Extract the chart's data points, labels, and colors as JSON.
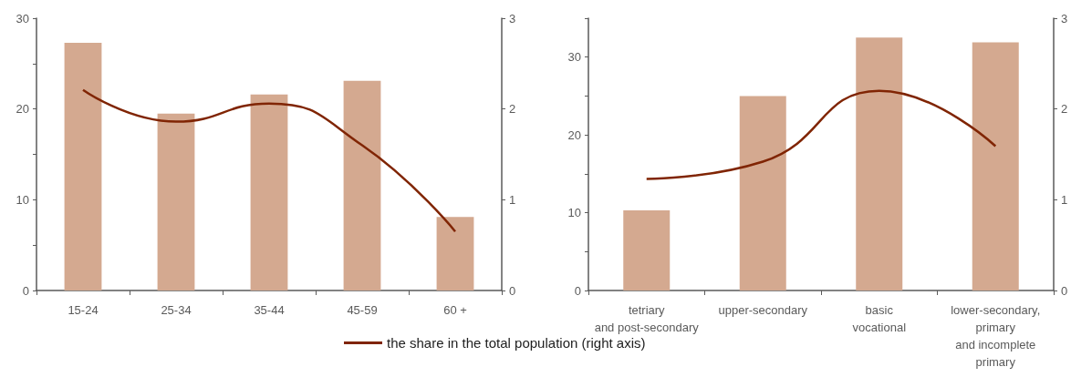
{
  "chart_data": [
    {
      "type": "bar",
      "categories": [
        "15-24",
        "25-34",
        "35-44",
        "45-59",
        "60 +"
      ],
      "series": [
        {
          "color": "#d4a990",
          "values": [
            27.3,
            19.5,
            21.6,
            23.1,
            8.1
          ]
        },
        {
          "type": "line",
          "axis": "y2",
          "name": "the share in the total population (right axis)",
          "color": "#802504",
          "values": [
            2.21,
            1.86,
            2.06,
            1.6,
            0.65
          ]
        }
      ],
      "ylim": [
        0,
        30
      ],
      "yticks": [
        0,
        {
          "value": 5,
          "label": null
        },
        10,
        {
          "value": 15,
          "label": null
        },
        20,
        {
          "value": 25,
          "label": null
        },
        30
      ],
      "y2lim": [
        0,
        3
      ],
      "y2ticks": [
        0,
        1,
        2,
        3
      ],
      "legend": "bottom"
    },
    {
      "type": "bar",
      "categories": [
        "tetriary\nand post-secondary",
        "upper-secondary",
        "basic\nvocational",
        "lower-secondary,\nprimary\nand incomplete\nprimary"
      ],
      "series": [
        {
          "color": "#d4a990",
          "values": [
            10.3,
            25.0,
            32.5,
            31.9
          ]
        },
        {
          "type": "line",
          "axis": "y2",
          "color": "#802504",
          "values": [
            1.23,
            1.42,
            2.2,
            1.59
          ]
        }
      ],
      "ylim": [
        0,
        35
      ],
      "yticks": [
        0,
        {
          "value": 5,
          "label": null
        },
        10,
        {
          "value": 15,
          "label": null
        },
        20,
        {
          "value": 25,
          "label": null
        },
        30,
        {
          "value": 35,
          "label": null
        }
      ],
      "y2lim": [
        0,
        3
      ],
      "y2ticks": [
        0,
        1,
        2,
        3
      ]
    }
  ]
}
